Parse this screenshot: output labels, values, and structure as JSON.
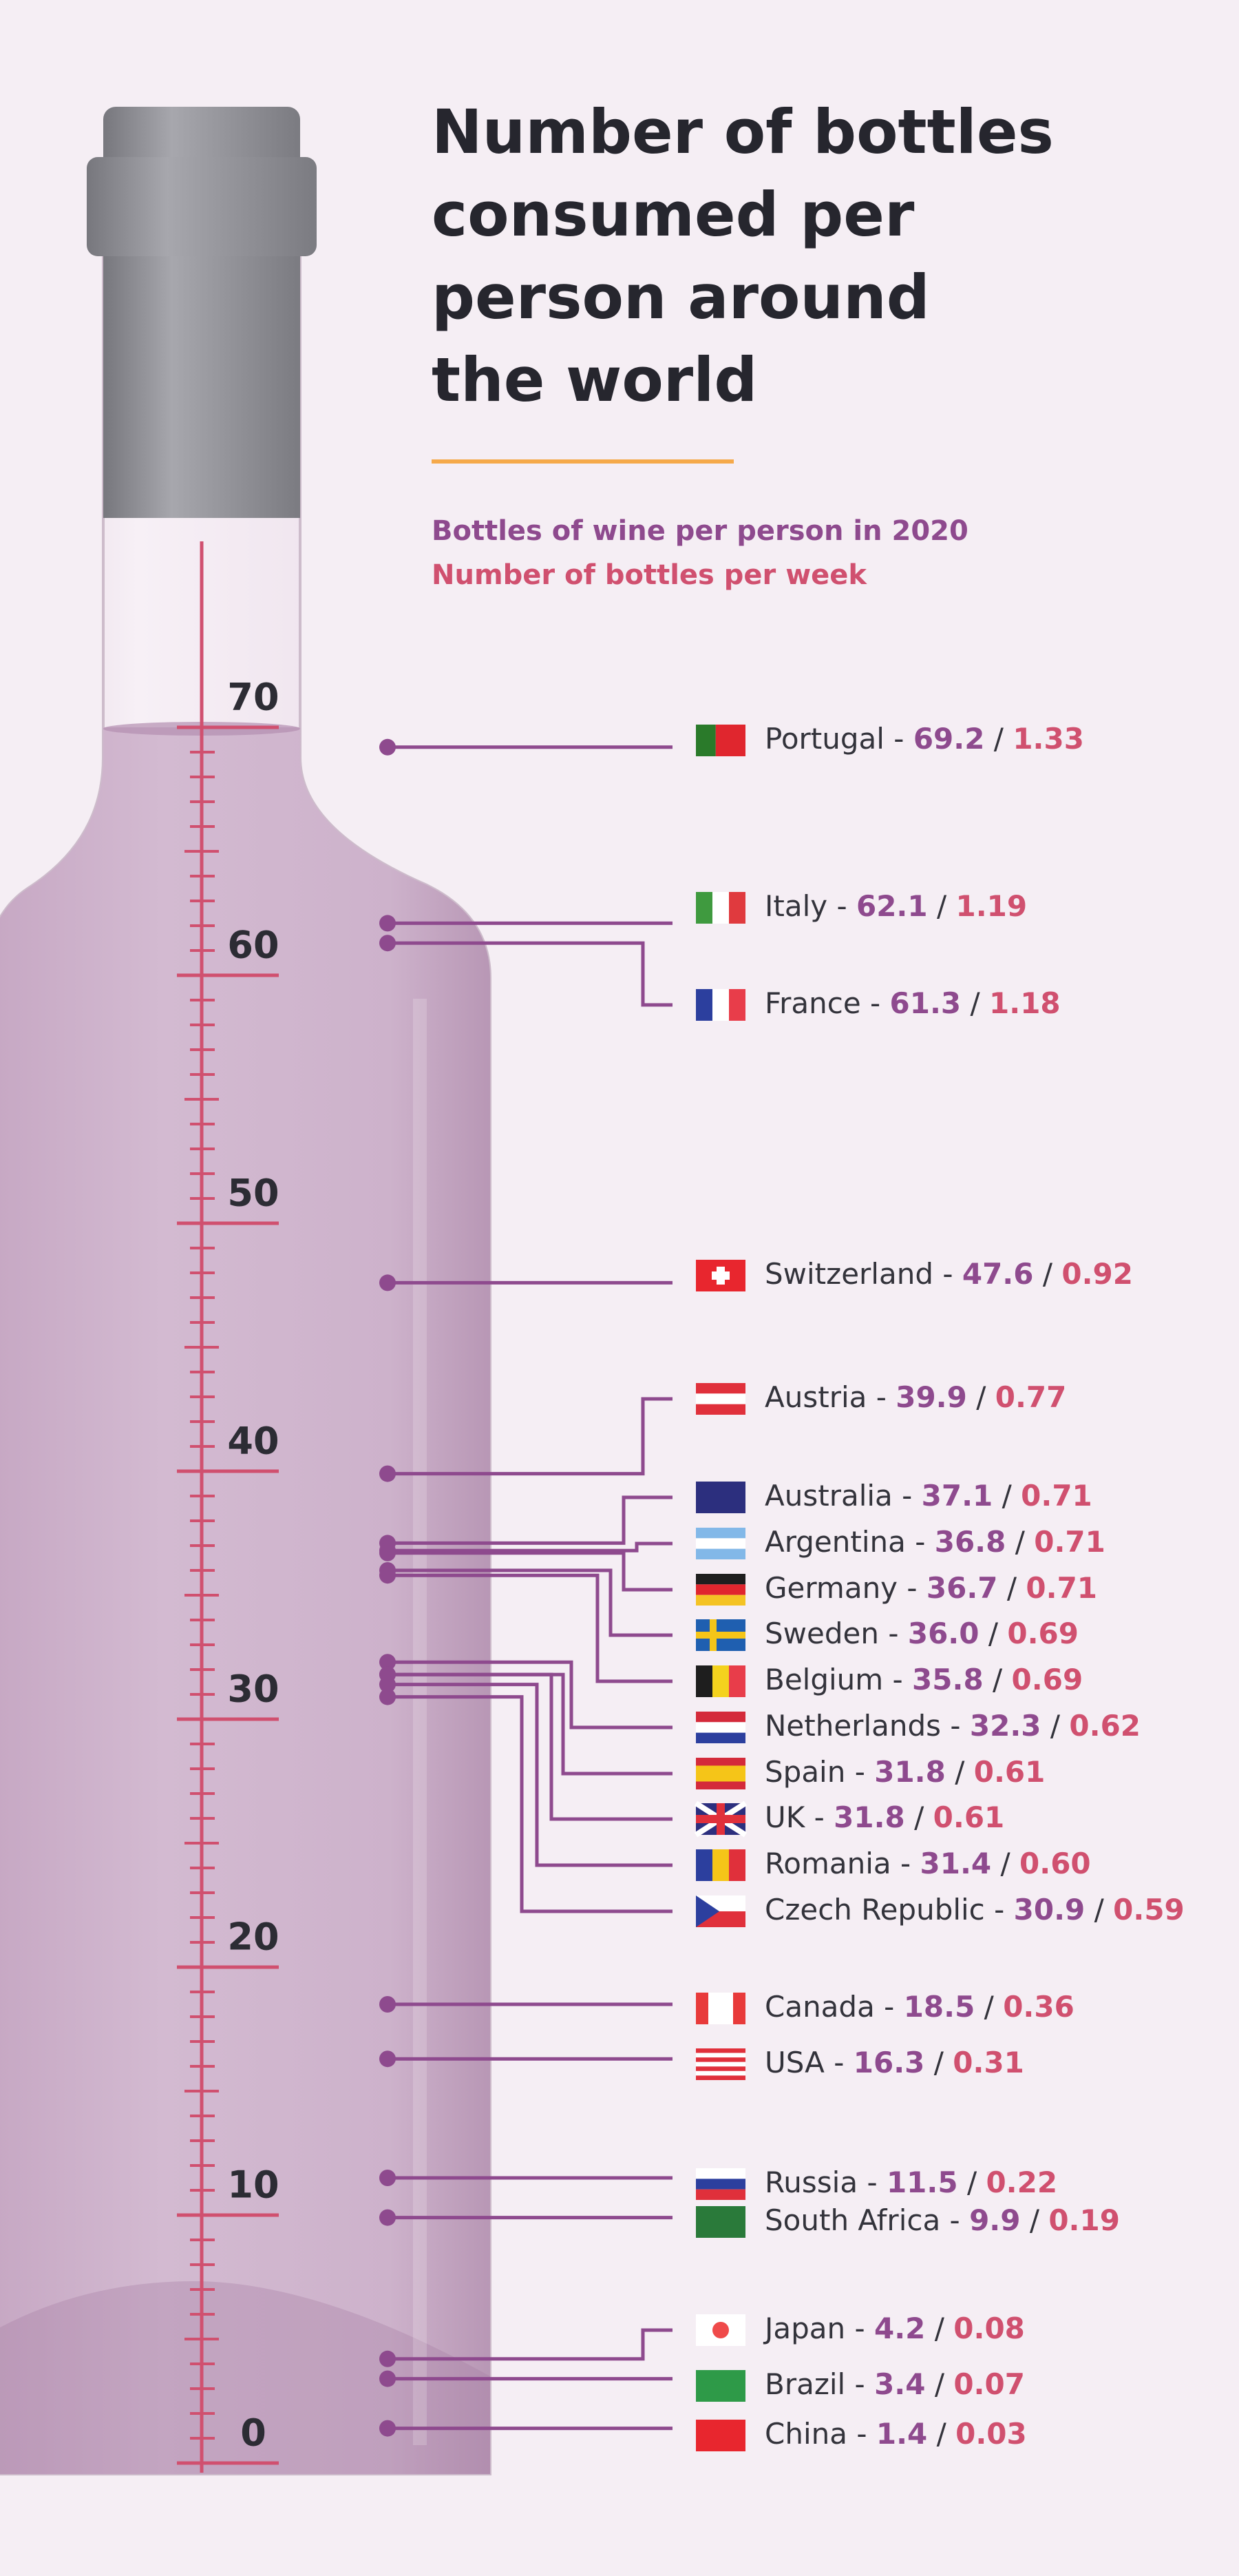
{
  "chart_data": {
    "type": "dot-leader",
    "title": "Number of bottles\nconsumed per\nperson around\nthe world",
    "categories": [
      "Portugal",
      "Italy",
      "France",
      "Switzerland",
      "Austria",
      "Australia",
      "Argentina",
      "Germany",
      "Sweden",
      "Belgium",
      "Netherlands",
      "Spain",
      "UK",
      "Romania",
      "Czech Republic",
      "Canada",
      "USA",
      "Russia",
      "South Africa",
      "Japan",
      "Brazil",
      "China"
    ],
    "series": [
      {
        "name": "Bottles of wine per person in 2020",
        "color": "#8e4a8e",
        "values": [
          69.2,
          62.1,
          61.3,
          47.6,
          39.9,
          37.1,
          36.8,
          36.7,
          36,
          35.8,
          32.3,
          31.8,
          31.8,
          31.4,
          30.9,
          18.5,
          16.3,
          11.5,
          9.9,
          4.2,
          3.4,
          1.4
        ],
        "value_labels": [
          "69.2",
          "62.1",
          "61.3",
          "47.6",
          "39.9",
          "37.1",
          "36.8",
          "36.7",
          "36.0",
          "35.8",
          "32.3",
          "31.8",
          "31.8",
          "31.4",
          "30.9",
          "18.5",
          "16.3",
          "11.5",
          "9.9",
          "4.2",
          "3.4",
          "1.4"
        ]
      },
      {
        "name": "Number of bottles per week",
        "color": "#d0506f",
        "values": [
          1.33,
          1.19,
          1.18,
          0.92,
          0.77,
          0.71,
          0.71,
          0.71,
          0.69,
          0.69,
          0.62,
          0.61,
          0.61,
          0.6,
          0.59,
          0.36,
          0.31,
          0.22,
          0.19,
          0.08,
          0.07,
          0.03
        ],
        "value_labels": [
          "1.33",
          "1.19",
          "1.18",
          "0.92",
          "0.77",
          "0.71",
          "0.71",
          "0.71",
          "0.69",
          "0.69",
          "0.62",
          "0.61",
          "0.61",
          "0.60",
          "0.59",
          "0.36",
          "0.31",
          "0.22",
          "0.19",
          "0.08",
          "0.07",
          "0.03"
        ]
      }
    ],
    "separators": [
      " - ",
      " / "
    ],
    "ylim": [
      0,
      77.5
    ],
    "yticks": [
      0,
      10,
      20,
      30,
      40,
      50,
      60,
      70
    ],
    "scale_color": "#d0506f"
  }
}
